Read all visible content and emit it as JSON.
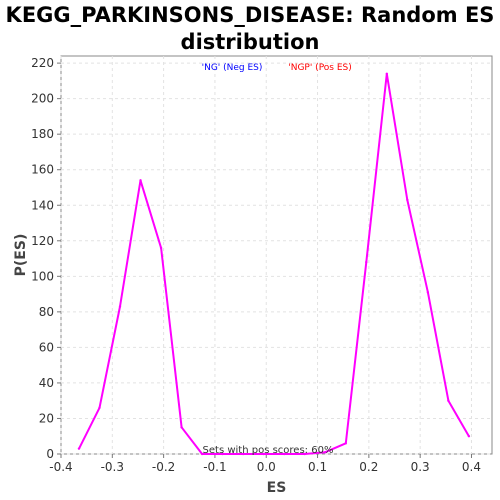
{
  "chart_data": {
    "type": "line",
    "title_line1": "KEGG_PARKINSONS_DISEASE: Random ES",
    "title_line2": "distribution",
    "xlabel": "ES",
    "ylabel": "P(ES)",
    "xlim": [
      -0.4,
      0.44
    ],
    "ylim": [
      0,
      224
    ],
    "xticks": [
      -0.4,
      -0.3,
      -0.2,
      -0.1,
      0.0,
      0.1,
      0.2,
      0.3,
      0.4
    ],
    "xtick_labels": [
      "-0.4",
      "-0.3",
      "-0.2",
      "-0.1",
      "0.0",
      "0.1",
      "0.2",
      "0.3",
      "0.4"
    ],
    "yticks": [
      0,
      20,
      40,
      60,
      80,
      100,
      120,
      140,
      160,
      180,
      200,
      220
    ],
    "ytick_labels": [
      "0",
      "20",
      "40",
      "60",
      "80",
      "100",
      "120",
      "140",
      "160",
      "180",
      "200",
      "220"
    ],
    "grid": true,
    "legend": [
      {
        "label": "'NG' (Neg ES)",
        "color": "#0000ff"
      },
      {
        "label": "'NGP' (Pos ES)",
        "color": "#ff0000"
      }
    ],
    "annotation": "Sets with pos scores: 60%",
    "series": [
      {
        "color": "#ff00ff",
        "x": [
          -0.365,
          -0.325,
          -0.285,
          -0.245,
          -0.205,
          -0.165,
          -0.125,
          -0.085,
          -0.045,
          -0.005,
          0.035,
          0.075,
          0.115,
          0.155,
          0.195,
          0.235,
          0.275,
          0.315,
          0.355,
          0.395
        ],
        "y": [
          3,
          26,
          83,
          154,
          116,
          15,
          0,
          0,
          0,
          0,
          0,
          0,
          1,
          6,
          108,
          214,
          143,
          91,
          30,
          10
        ]
      }
    ]
  }
}
